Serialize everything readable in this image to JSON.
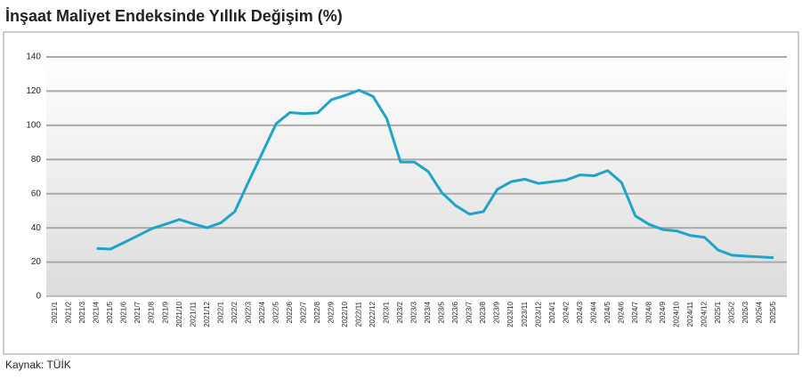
{
  "chart_data": {
    "type": "line",
    "title": "İnşaat Maliyet Endeksinde Yıllık Değişim (%)",
    "source": "Kaynak: TÜİK",
    "categories": [
      "2021/1",
      "2021/2",
      "2021/3",
      "2021/4",
      "2021/5",
      "2021/6",
      "2021/7",
      "2021/8",
      "2021/9",
      "2021/10",
      "2021/11",
      "2021/12",
      "2022/1",
      "2022/2",
      "2022/3",
      "2022/4",
      "2022/5",
      "2022/6",
      "2022/7",
      "2022/8",
      "2022/9",
      "2022/10",
      "2022/11",
      "2022/12",
      "2023/1",
      "2023/2",
      "2023/3",
      "2023/4",
      "2023/5",
      "2023/6",
      "2023/7",
      "2023/8",
      "2023/9",
      "2023/10",
      "2023/11",
      "2023/12",
      "2024/1",
      "2024/2",
      "2024/3",
      "2024/4",
      "2024/5",
      "2024/6",
      "2024/7",
      "2024/8",
      "2024/9",
      "2024/10",
      "2024/11",
      "2024/12",
      "2025/1",
      "2025/2",
      "2025/3",
      "2025/4",
      "2025/5"
    ],
    "series": [
      {
        "name": "Yıllık Değişim",
        "color": "#1fa3c9",
        "values": [
          null,
          null,
          null,
          28,
          27.6,
          31.5,
          35.5,
          39.6,
          42.2,
          44.9,
          42.3,
          40.1,
          43,
          49.5,
          67,
          84,
          101,
          107.5,
          106.8,
          107.3,
          115,
          117.5,
          120.5,
          117,
          104,
          78.5,
          78.5,
          73,
          60.5,
          53,
          48,
          49.5,
          62.5,
          67,
          68.5,
          66,
          67,
          68,
          71,
          70.5,
          73.5,
          66.5,
          47,
          42,
          39,
          38.2,
          35.5,
          34.5,
          27,
          24,
          23.5,
          23,
          22.6
        ]
      }
    ],
    "ylim": [
      0,
      140
    ],
    "yticks": [
      0,
      20,
      40,
      60,
      80,
      100,
      120,
      140
    ],
    "grid": true
  }
}
